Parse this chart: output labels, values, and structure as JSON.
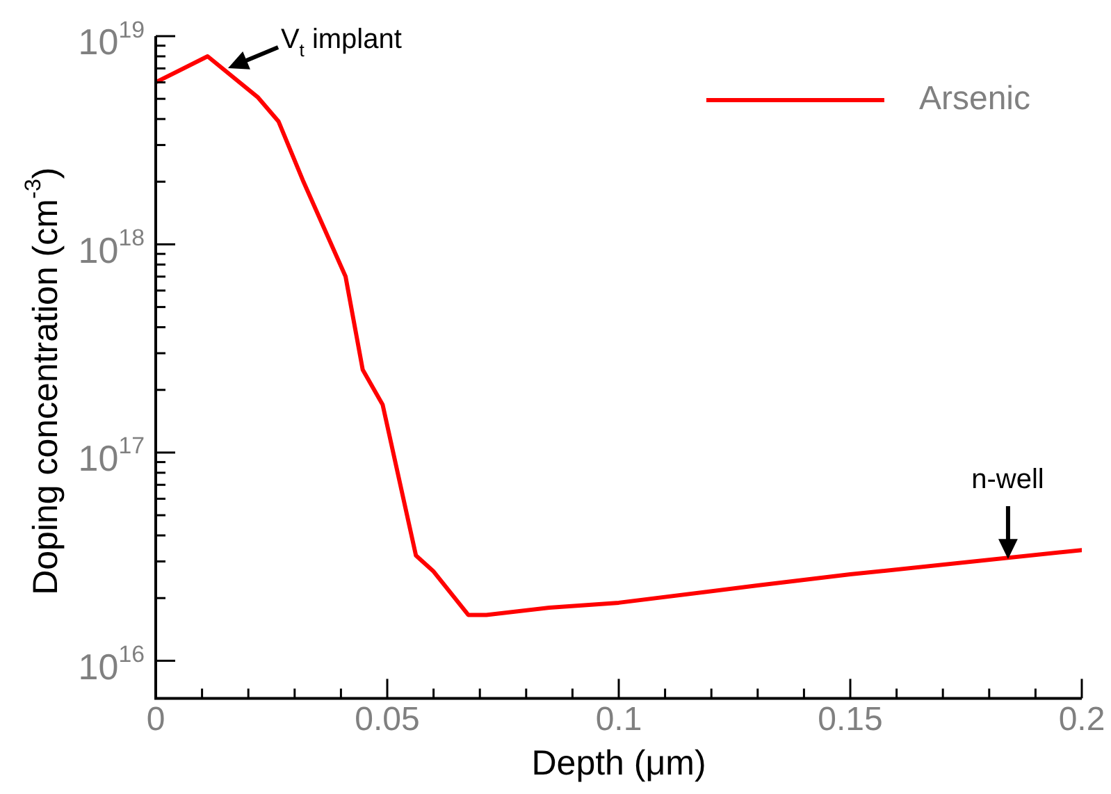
{
  "chart_data": {
    "type": "line",
    "xlabel": "Depth (μm)",
    "ylabel": "Doping concentration (cm$^{-3}$)",
    "x": [
      0,
      0.0112,
      0.022,
      0.0265,
      0.0319,
      0.041,
      0.0447,
      0.049,
      0.0562,
      0.0599,
      0.0675,
      0.0714,
      0.085,
      0.1,
      0.13,
      0.15,
      0.2
    ],
    "series": [
      {
        "name": "Arsenic",
        "color": "#ff0000",
        "values": [
          6e+18,
          8e+18,
          5.1e+18,
          3.9e+18,
          2e+18,
          7e+17,
          2.5e+17,
          1.7e+17,
          3.2e+16,
          2.7e+16,
          1.66e+16,
          1.66e+16,
          1.8e+16,
          1.9e+16,
          2.3e+16,
          2.6e+16,
          3.4e+16
        ]
      }
    ],
    "log": "y",
    "xlim": [
      0,
      0.2
    ],
    "ylim": [
      6600000000000000.0,
      1e+19
    ],
    "xticks": [
      0,
      {
        "value": 0.01,
        "label": null
      },
      {
        "value": 0.02,
        "label": null
      },
      {
        "value": 0.03,
        "label": null
      },
      {
        "value": 0.04,
        "label": null
      },
      0.05,
      {
        "value": 0.06,
        "label": null
      },
      {
        "value": 0.07,
        "label": null
      },
      {
        "value": 0.08,
        "label": null
      },
      {
        "value": 0.09,
        "label": null
      },
      0.1,
      {
        "value": 0.11,
        "label": null
      },
      {
        "value": 0.12,
        "label": null
      },
      {
        "value": 0.13,
        "label": null
      },
      {
        "value": 0.14,
        "label": null
      },
      0.15,
      {
        "value": 0.16,
        "label": null
      },
      {
        "value": 0.17,
        "label": null
      },
      {
        "value": 0.18,
        "label": null
      },
      {
        "value": 0.19,
        "label": null
      },
      0.2
    ],
    "yticks": [
      {
        "value": 1e+16,
        "label": "10$^{16}$"
      },
      {
        "value": 2e+16,
        "label": null
      },
      {
        "value": 3e+16,
        "label": null
      },
      {
        "value": 4e+16,
        "label": null
      },
      {
        "value": 5e+16,
        "label": null
      },
      {
        "value": 6e+16,
        "label": null
      },
      {
        "value": 7e+16,
        "label": null
      },
      {
        "value": 8e+16,
        "label": null
      },
      {
        "value": 9e+16,
        "label": null
      },
      {
        "value": 1e+17,
        "label": "10$^{17}$"
      },
      {
        "value": 2e+17,
        "label": null
      },
      {
        "value": 3e+17,
        "label": null
      },
      {
        "value": 4e+17,
        "label": null
      },
      {
        "value": 5e+17,
        "label": null
      },
      {
        "value": 6e+17,
        "label": null
      },
      {
        "value": 7e+17,
        "label": null
      },
      {
        "value": 8e+17,
        "label": null
      },
      {
        "value": 9e+17,
        "label": null
      },
      {
        "value": 1e+18,
        "label": "10$^{18}$"
      },
      {
        "value": 2e+18,
        "label": null
      },
      {
        "value": 3e+18,
        "label": null
      },
      {
        "value": 4e+18,
        "label": null
      },
      {
        "value": 5e+18,
        "label": null
      },
      {
        "value": 6e+18,
        "label": null
      },
      {
        "value": 7e+18,
        "label": null
      },
      {
        "value": 8e+18,
        "label": null
      },
      {
        "value": 9e+18,
        "label": null
      },
      {
        "value": 1e+19,
        "label": "10$^{19}$"
      }
    ],
    "grid": false,
    "legend": "top right",
    "marker": "none",
    "line_style": "solid",
    "annotations": [
      {
        "text": "V$_{t}$ implant",
        "x": 0.0156,
        "y": 7e+18
      },
      {
        "text": "n-well",
        "x": 0.184,
        "y": 3.1e+16
      }
    ]
  }
}
